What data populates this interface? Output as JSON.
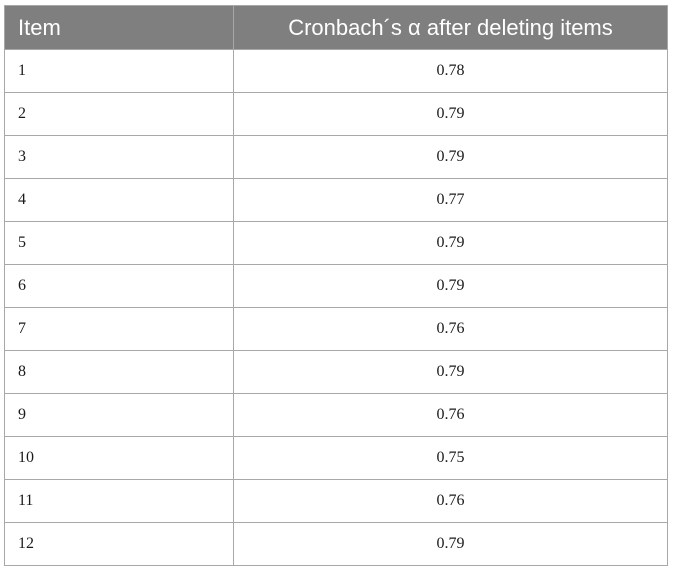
{
  "table": {
    "headers": [
      "Item",
      "Cronbach´s α after deleting items"
    ],
    "rows": [
      {
        "item": "1",
        "alpha": "0.78"
      },
      {
        "item": "2",
        "alpha": "0.79"
      },
      {
        "item": "3",
        "alpha": "0.79"
      },
      {
        "item": "4",
        "alpha": "0.77"
      },
      {
        "item": "5",
        "alpha": "0.79"
      },
      {
        "item": "6",
        "alpha": "0.79"
      },
      {
        "item": "7",
        "alpha": "0.76"
      },
      {
        "item": "8",
        "alpha": "0.79"
      },
      {
        "item": "9",
        "alpha": "0.76"
      },
      {
        "item": "10",
        "alpha": "0.75"
      },
      {
        "item": "11",
        "alpha": "0.76"
      },
      {
        "item": "12",
        "alpha": "0.79"
      }
    ]
  },
  "colors": {
    "header_bg": "#7f7f7f",
    "header_text": "#ffffff",
    "grid_line": "#a8a8a8"
  }
}
